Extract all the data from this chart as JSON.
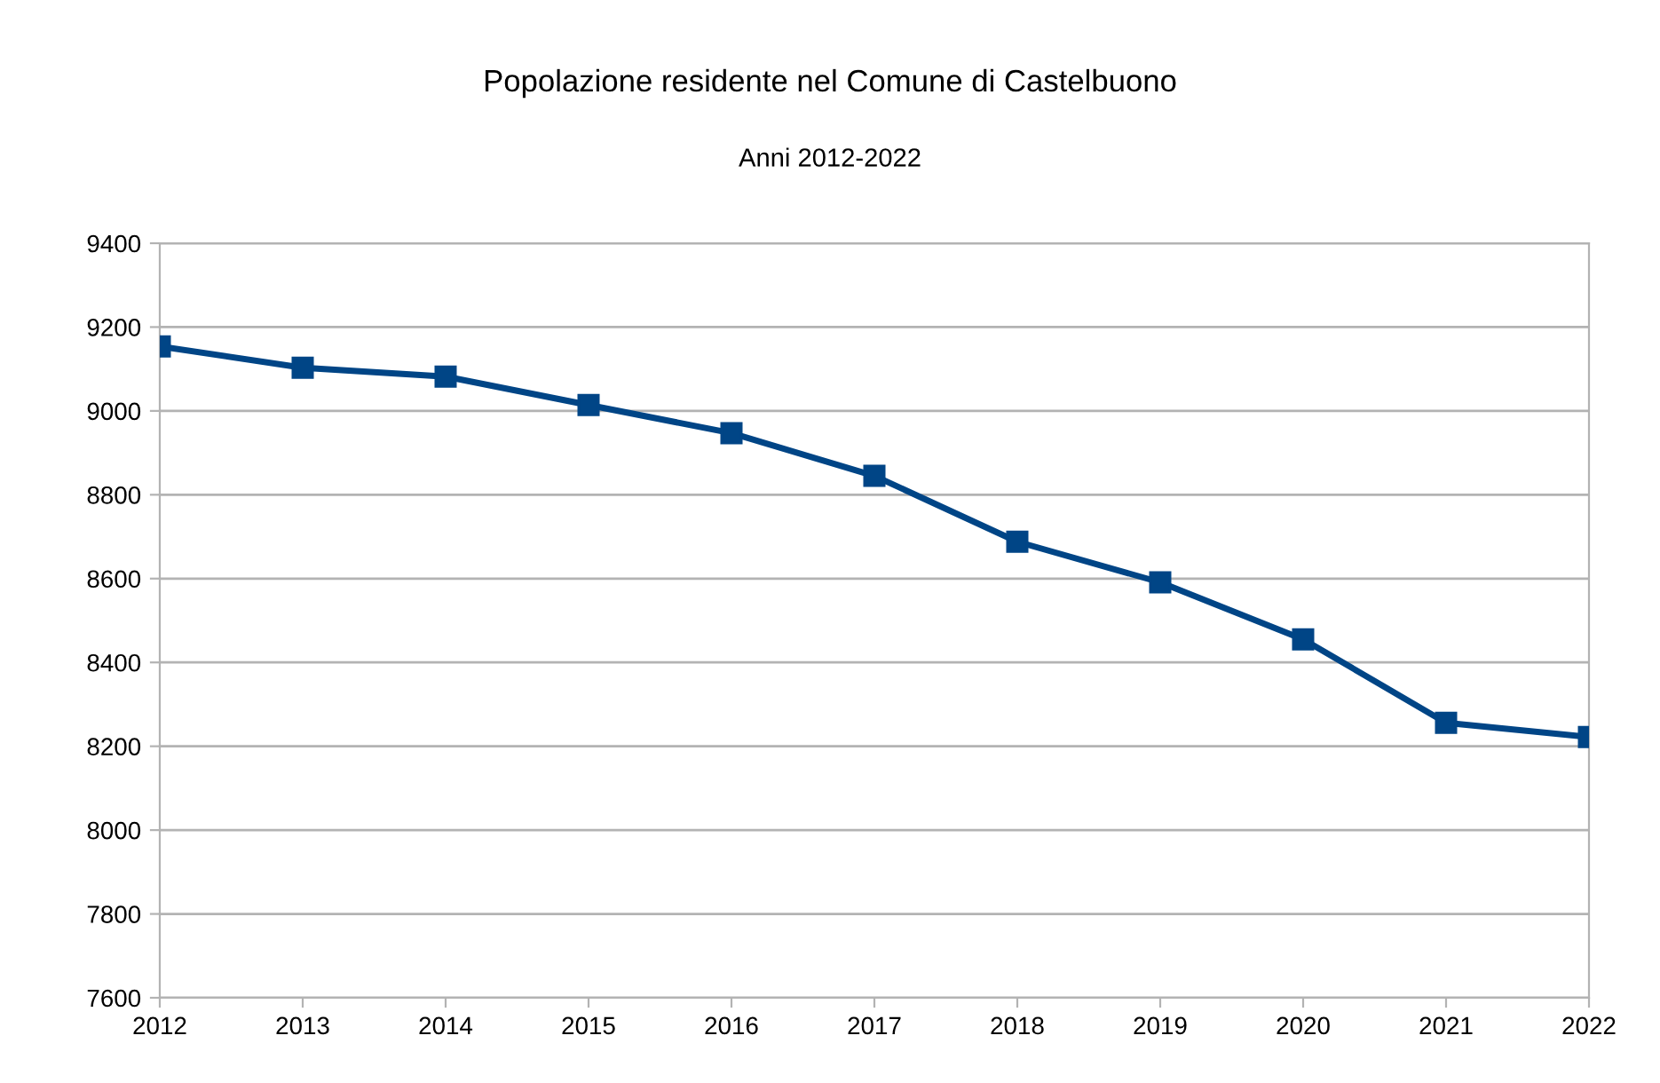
{
  "chart_data": {
    "type": "line",
    "title": "Popolazione residente nel Comune di Castelbuono",
    "subtitle": "Anni 2012-2022",
    "x": [
      2012,
      2013,
      2014,
      2015,
      2016,
      2017,
      2018,
      2019,
      2020,
      2021,
      2022
    ],
    "series": [
      {
        "color": "#004586",
        "values": [
          9154,
          9103,
          9082,
          9014,
          8947,
          8845,
          8688,
          8591,
          8455,
          8256,
          8222
        ]
      }
    ],
    "xlim": [
      2012,
      2022
    ],
    "xticks": [
      2012,
      2013,
      2014,
      2015,
      2016,
      2017,
      2018,
      2019,
      2020,
      2021,
      2022
    ],
    "ylim": [
      7600,
      9400
    ],
    "yticks": [
      7600,
      7800,
      8000,
      8200,
      8400,
      8600,
      8800,
      9000,
      9200,
      9400
    ],
    "grid": "y",
    "marker": "square",
    "line_style": "solid",
    "legend": false
  }
}
